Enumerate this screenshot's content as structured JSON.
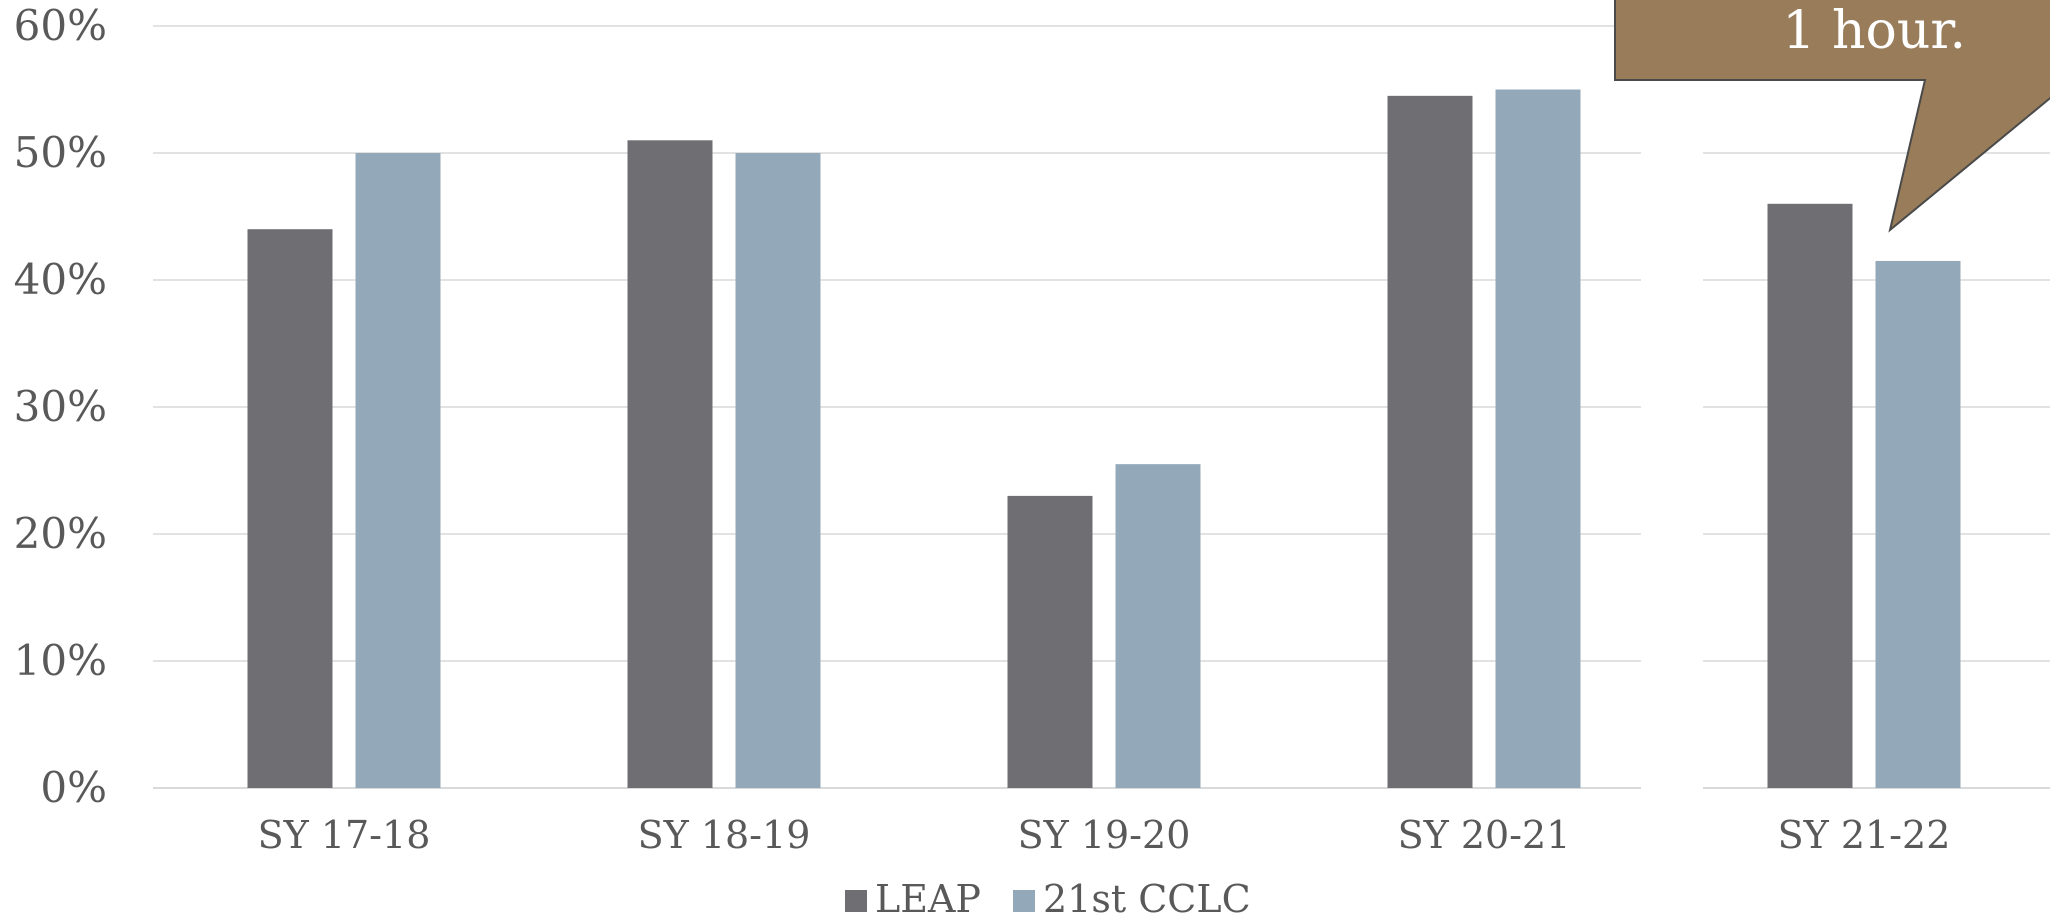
{
  "chart_data": {
    "type": "bar",
    "categories": [
      "SY 17-18",
      "SY 18-19",
      "SY 19-20",
      "SY 20-21",
      "SY 21-22"
    ],
    "series": [
      {
        "name": "LEAP",
        "values": [
          44,
          51,
          23,
          54.5,
          46
        ]
      },
      {
        "name": "21st CCLC",
        "values": [
          50,
          50,
          25.5,
          55,
          41.5
        ]
      }
    ],
    "ylim": [
      0,
      60
    ],
    "yticks": [
      "0%",
      "10%",
      "20%",
      "30%",
      "40%",
      "50%",
      "60%"
    ],
    "grid": true,
    "legend": "bottom",
    "colors": {
      "LEAP": "#6f6e73",
      "21st CCLC": "#93a9b9",
      "callout": "#997d5a",
      "text": "#595959",
      "grid": "#d9d9d9"
    },
    "annotation": {
      "text": "1 hour."
    }
  }
}
